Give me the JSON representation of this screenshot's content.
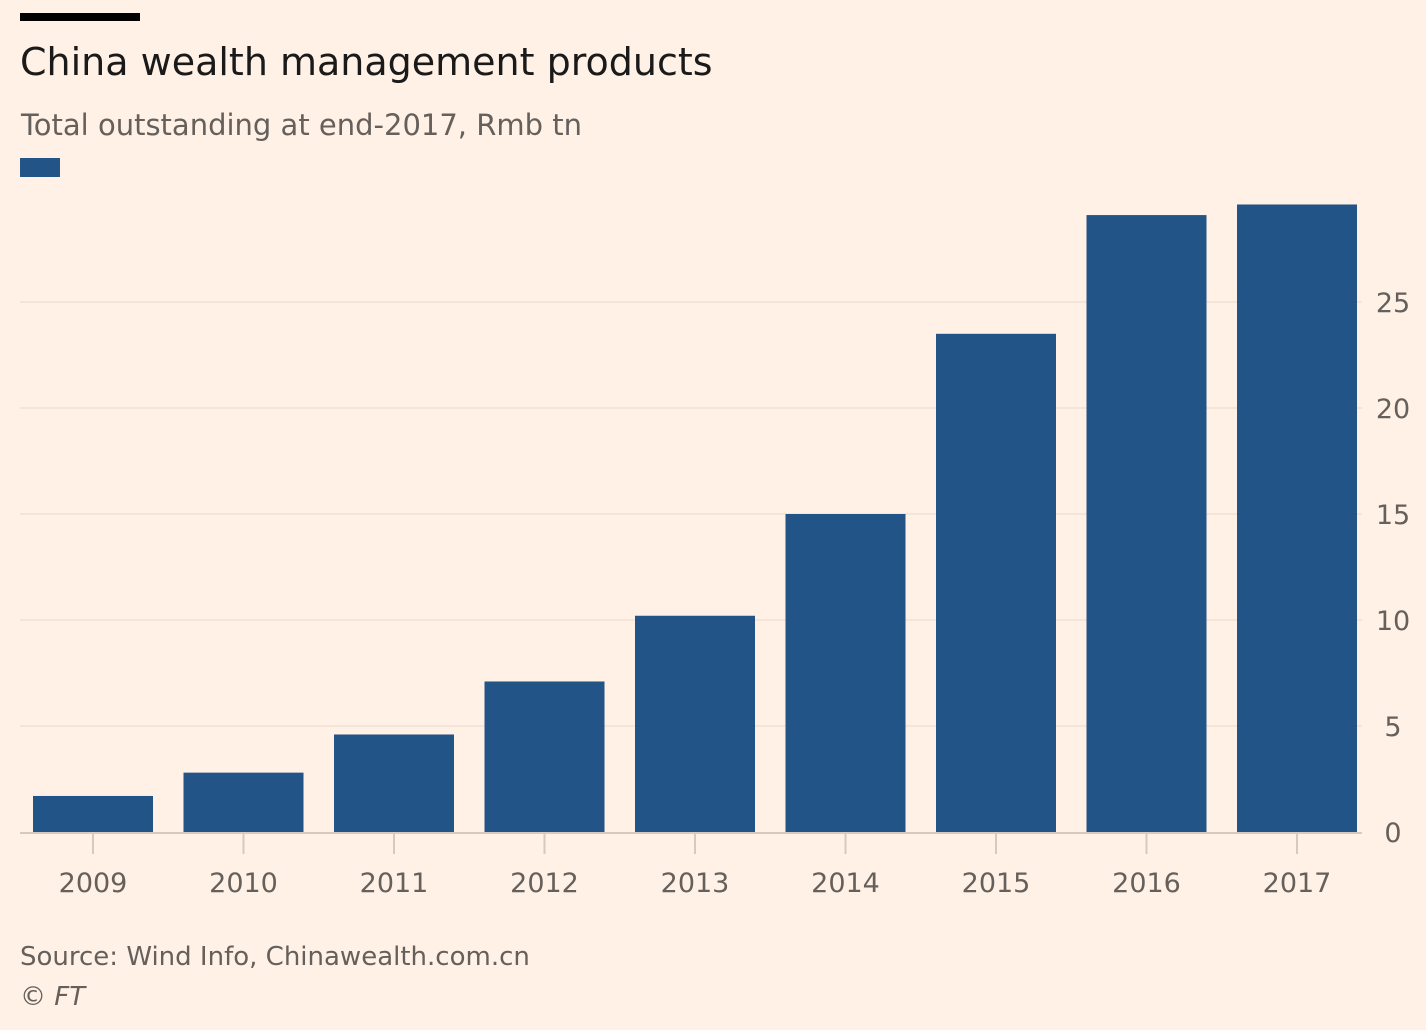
{
  "header": {
    "title": "China wealth management products",
    "subtitle": "Total outstanding at end-2017, Rmb tn"
  },
  "footer": {
    "source": "Source: Wind Info, Chinawealth.com.cn",
    "credit": "© FT"
  },
  "colors": {
    "background": "#fff1e5",
    "bar": "#235487",
    "gridline": "#f4e5d8",
    "axis": "#d9c9bb",
    "tick_text": "#66605c"
  },
  "chart_data": {
    "type": "bar",
    "title": "China wealth management products",
    "subtitle": "Total outstanding at end-2017, Rmb tn",
    "xlabel": "",
    "ylabel": "",
    "categories": [
      "2009",
      "2010",
      "2011",
      "2012",
      "2013",
      "2014",
      "2015",
      "2016",
      "2017"
    ],
    "series": [
      {
        "values": [
          1.7,
          2.8,
          4.6,
          7.1,
          10.2,
          15.0,
          23.5,
          29.1,
          29.6
        ]
      }
    ],
    "yticks": [
      0,
      5,
      10,
      15,
      20,
      25
    ],
    "ylim": [
      0,
      30
    ],
    "y_axis_side": "right",
    "grid": true,
    "legend": "top-left swatch"
  }
}
